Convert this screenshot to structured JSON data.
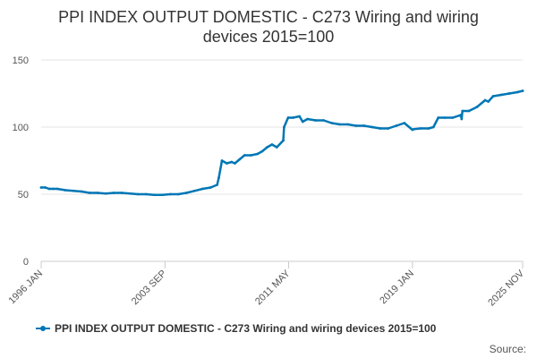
{
  "chart_data": {
    "type": "line",
    "title_line1": "PPI INDEX OUTPUT DOMESTIC - C273 Wiring and wiring",
    "title_line2": "devices 2015=100",
    "ylim": [
      0,
      150
    ],
    "yticks": [
      "0",
      "50",
      "100",
      "150"
    ],
    "xticks": [
      "1996 JAN",
      "2003 SEP",
      "2011 MAY",
      "2019 JAN",
      "2025 NOV"
    ],
    "xtick_years": [
      1996.0,
      2003.67,
      2011.33,
      2019.0,
      2025.83
    ],
    "xlim": [
      1996.0,
      2025.83
    ],
    "grid": true,
    "legend_position": "bottom",
    "series": [
      {
        "name": "PPI INDEX OUTPUT DOMESTIC - C273 Wiring and wiring devices 2015=100",
        "color": "#0077b5",
        "x": [
          1996.0,
          1996.25,
          1996.5,
          1996.75,
          1997.0,
          1997.5,
          1998.0,
          1998.5,
          1999.0,
          1999.5,
          2000.0,
          2000.5,
          2001.0,
          2001.5,
          2002.0,
          2002.5,
          2003.0,
          2003.5,
          2004.0,
          2004.5,
          2005.0,
          2005.5,
          2006.0,
          2006.5,
          2006.9,
          2007.0,
          2007.2,
          2007.5,
          2007.8,
          2008.0,
          2008.3,
          2008.6,
          2009.0,
          2009.4,
          2009.7,
          2010.0,
          2010.3,
          2010.6,
          2011.0,
          2011.05,
          2011.3,
          2011.6,
          2012.0,
          2012.2,
          2012.5,
          2013.0,
          2013.5,
          2014.0,
          2014.5,
          2015.0,
          2015.5,
          2016.0,
          2016.5,
          2017.0,
          2017.5,
          2018.0,
          2018.5,
          2019.0,
          2019.1,
          2019.5,
          2020.0,
          2020.3,
          2020.6,
          2021.0,
          2021.5,
          2022.0,
          2022.05,
          2022.1,
          2022.5,
          2023.0,
          2023.5,
          2023.7,
          2024.0,
          2024.5,
          2025.0,
          2025.5,
          2025.83
        ],
        "values": [
          55,
          55,
          54,
          54,
          54,
          53,
          52.5,
          52,
          51,
          51,
          50.5,
          51,
          51,
          50.5,
          50,
          50,
          49.5,
          49.5,
          50,
          50,
          51,
          52.5,
          54,
          55,
          57,
          62,
          75,
          73,
          74,
          73,
          76,
          79,
          79,
          80,
          82,
          85,
          87,
          85,
          90,
          100,
          107,
          107,
          108,
          104,
          106,
          105,
          105,
          103,
          102,
          102,
          101,
          101,
          100,
          99,
          99,
          101,
          103,
          98,
          98.5,
          99,
          99,
          100,
          107,
          107,
          107,
          109,
          106,
          112,
          112,
          115,
          120,
          119,
          123,
          124,
          125,
          126,
          127
        ]
      }
    ]
  },
  "legend": {
    "label": "PPI INDEX OUTPUT DOMESTIC - C273 Wiring and wiring devices 2015=100"
  },
  "source": {
    "label": "Source:"
  }
}
